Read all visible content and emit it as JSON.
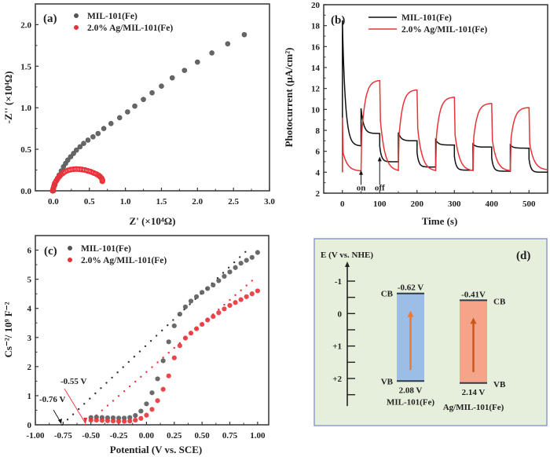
{
  "chart_data": [
    {
      "id": "a",
      "type": "scatter",
      "panel_label": "(a)",
      "xlabel": "Z' (×10⁴Ω)",
      "ylabel": "-Z'' (×10⁴Ω)",
      "xlim": [
        -0.25,
        3.0
      ],
      "ylim": [
        0.0,
        2.25
      ],
      "xticks": [
        0.0,
        0.5,
        1.0,
        1.5,
        2.0,
        2.5,
        3.0
      ],
      "xtick_labels": [
        "0.0",
        "0.5",
        "1.0",
        "1.5",
        "2.0",
        "2.5",
        "3.0"
      ],
      "yticks": [
        0.0,
        0.5,
        1.0,
        1.5,
        2.0
      ],
      "ytick_labels": [
        "0.0",
        "0.5",
        "1.0",
        "1.5",
        "2.0"
      ],
      "legend_position": "top-left",
      "series": [
        {
          "name": "MIL-101(Fe)",
          "color": "#555555",
          "x": [
            0.0,
            0.02,
            0.05,
            0.08,
            0.11,
            0.14,
            0.17,
            0.2,
            0.24,
            0.28,
            0.32,
            0.37,
            0.42,
            0.48,
            0.55,
            0.62,
            0.7,
            0.8,
            0.92,
            1.03,
            1.13,
            1.25,
            1.37,
            1.5,
            1.65,
            1.82,
            2.0,
            2.2,
            2.42,
            2.65
          ],
          "y": [
            0.0,
            0.07,
            0.13,
            0.19,
            0.24,
            0.29,
            0.33,
            0.37,
            0.41,
            0.45,
            0.49,
            0.53,
            0.57,
            0.61,
            0.65,
            0.69,
            0.75,
            0.81,
            0.88,
            0.95,
            1.02,
            1.1,
            1.18,
            1.26,
            1.36,
            1.45,
            1.55,
            1.66,
            1.77,
            1.88
          ]
        },
        {
          "name": "2.0% Ag/MIL-101(Fe)",
          "color": "#e8333a",
          "x": [
            -0.01,
            0.0,
            0.01,
            0.02,
            0.04,
            0.06,
            0.08,
            0.1,
            0.13,
            0.16,
            0.2,
            0.24,
            0.28,
            0.32,
            0.36,
            0.4,
            0.44,
            0.48,
            0.52,
            0.56,
            0.6,
            0.63,
            0.65,
            0.67,
            0.68,
            0.68
          ],
          "y": [
            0.0,
            0.03,
            0.06,
            0.09,
            0.12,
            0.15,
            0.17,
            0.19,
            0.21,
            0.23,
            0.245,
            0.255,
            0.26,
            0.262,
            0.26,
            0.256,
            0.25,
            0.24,
            0.23,
            0.215,
            0.2,
            0.185,
            0.17,
            0.15,
            0.13,
            0.115
          ]
        }
      ]
    },
    {
      "id": "b",
      "type": "line",
      "panel_label": "(b)",
      "xlabel": "Time (s)",
      "ylabel": "Photocurrent (μA/cm²)",
      "xlim": [
        -50,
        550
      ],
      "ylim": [
        2,
        20
      ],
      "xticks": [
        0,
        100,
        200,
        300,
        400,
        500
      ],
      "xtick_labels": [
        "0",
        "100",
        "200",
        "300",
        "400",
        "500"
      ],
      "yticks": [
        2,
        4,
        6,
        8,
        10,
        12,
        14,
        16,
        18,
        20
      ],
      "ytick_labels": [
        "2",
        "4",
        "6",
        "8",
        "10",
        "12",
        "14",
        "16",
        "18",
        "20"
      ],
      "legend_position": "top-right",
      "annotations": [
        {
          "text": "on",
          "x": 50,
          "y": 4.2
        },
        {
          "text": "off",
          "x": 100,
          "y": 5.5
        }
      ],
      "series": [
        {
          "name": "MIL-101(Fe)",
          "color": "#111111",
          "on_peaks": [
            18.5,
            10.1,
            7.8,
            7.1,
            6.7,
            6.6
          ],
          "on_plateaus": [
            6.6,
            7.7,
            7.0,
            6.6,
            6.4,
            6.3
          ],
          "off_values": [
            5.0,
            4.5,
            4.2,
            4.1,
            4.0
          ]
        },
        {
          "name": "2.0% Ag/MIL-101(Fe)",
          "color": "#e8333a",
          "start_value": 9.2,
          "off_values": [
            4.1,
            4.1,
            4.1,
            4.1,
            4.1,
            4.2
          ],
          "on_peaks": [
            12.8,
            11.9,
            11.2,
            10.6,
            10.2
          ]
        }
      ]
    },
    {
      "id": "c",
      "type": "scatter",
      "panel_label": "(c)",
      "xlabel": "Potential (V vs. SCE)",
      "ylabel": "Cs⁻²/ 10⁹ F⁻²",
      "xlim": [
        -1.0,
        1.1
      ],
      "ylim": [
        0,
        6.5
      ],
      "xticks": [
        -1.0,
        -0.75,
        -0.5,
        -0.25,
        0.0,
        0.25,
        0.5,
        0.75,
        1.0
      ],
      "xtick_labels": [
        "-1.00",
        "-0.75",
        "-0.50",
        "-0.25",
        "0.00",
        "0.25",
        "0.50",
        "0.75",
        "1.00"
      ],
      "yticks": [
        0,
        1,
        2,
        3,
        4,
        5,
        6
      ],
      "ytick_labels": [
        "0",
        "1",
        "2",
        "3",
        "4",
        "5",
        "6"
      ],
      "legend_position": "top-left",
      "annotations": [
        {
          "text": "-0.55 V",
          "x": -0.55,
          "y": 0,
          "color": "#e8333a"
        },
        {
          "text": "-0.76 V",
          "x": -0.76,
          "y": 0,
          "color": "#111111"
        }
      ],
      "fit_lines": [
        {
          "series": "MIL-101(Fe)",
          "x0": -0.76,
          "x1": 0.9,
          "slope": 3.6
        },
        {
          "series": "2.0% Ag/MIL-101(Fe)",
          "x0": -0.55,
          "x1": 0.95,
          "slope": 3.3
        }
      ],
      "series": [
        {
          "name": "MIL-101(Fe)",
          "color": "#555555",
          "x": [
            -0.5,
            -0.45,
            -0.4,
            -0.35,
            -0.3,
            -0.25,
            -0.2,
            -0.15,
            -0.1,
            -0.05,
            0.0,
            0.05,
            0.1,
            0.15,
            0.2,
            0.25,
            0.3,
            0.35,
            0.4,
            0.45,
            0.5,
            0.55,
            0.6,
            0.65,
            0.7,
            0.75,
            0.8,
            0.85,
            0.9,
            0.95,
            1.0
          ],
          "y": [
            0.25,
            0.26,
            0.25,
            0.24,
            0.24,
            0.23,
            0.23,
            0.25,
            0.32,
            0.47,
            0.72,
            1.1,
            1.58,
            2.2,
            2.85,
            3.4,
            3.8,
            4.05,
            4.25,
            4.4,
            4.55,
            4.68,
            4.8,
            4.95,
            5.1,
            5.25,
            5.4,
            5.55,
            5.65,
            5.75,
            5.92
          ]
        },
        {
          "name": "2.0% Ag/MIL-101(Fe)",
          "color": "#e8333a",
          "x": [
            -0.5,
            -0.45,
            -0.4,
            -0.35,
            -0.3,
            -0.25,
            -0.2,
            -0.15,
            -0.1,
            -0.05,
            0.0,
            0.05,
            0.1,
            0.15,
            0.2,
            0.25,
            0.3,
            0.35,
            0.4,
            0.45,
            0.5,
            0.55,
            0.6,
            0.65,
            0.7,
            0.75,
            0.8,
            0.85,
            0.9,
            0.95,
            1.0
          ],
          "y": [
            0.16,
            0.16,
            0.15,
            0.14,
            0.13,
            0.12,
            0.12,
            0.13,
            0.16,
            0.22,
            0.33,
            0.53,
            0.83,
            1.22,
            1.68,
            2.3,
            2.72,
            2.98,
            3.15,
            3.3,
            3.45,
            3.6,
            3.72,
            3.85,
            3.98,
            4.1,
            4.2,
            4.3,
            4.4,
            4.5,
            4.6
          ]
        }
      ]
    },
    {
      "id": "d",
      "type": "diagram",
      "panel_label": "(d)",
      "axis_title": "E (V vs. NHE)",
      "axis_ticks": [
        -1,
        -0.5,
        0,
        0.5,
        1,
        1.5,
        2,
        2.5
      ],
      "axis_tick_labels": {
        "-1": "-1",
        "0": "0",
        "1": "+1",
        "2": "+2"
      },
      "background": "#e5efdb",
      "border": "#8f9bd1",
      "bands": [
        {
          "name": "MIL-101(Fe)",
          "cb": -0.62,
          "vb": 2.08,
          "cb_label": "-0.62 V",
          "vb_label": "2.08 V",
          "fill": "#9bbde6",
          "arrow_color": "#ee7a30"
        },
        {
          "name": "Ag/MIL-101(Fe)",
          "cb": -0.41,
          "vb": 2.14,
          "cb_label": "-0.41V",
          "vb_label": "2.14 V",
          "fill": "#f5a48a",
          "arrow_color": "#c9561b"
        }
      ],
      "cb_text": "CB",
      "vb_text": "VB"
    }
  ]
}
